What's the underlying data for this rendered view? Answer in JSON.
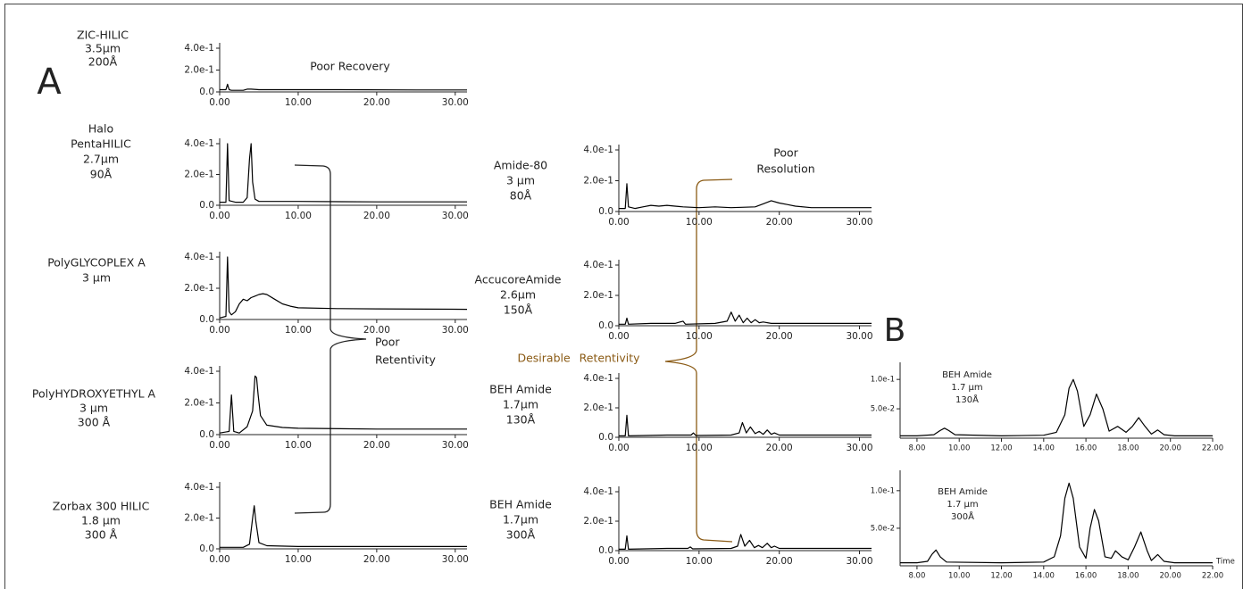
{
  "chart_data": [
    {
      "type": "line",
      "labels": [
        "ZIC-HILIC",
        "3.5µm",
        "200Å"
      ],
      "color": "#000000",
      "x": [
        0,
        0.8,
        1.0,
        1.2,
        1.5,
        3,
        3.5,
        4,
        5,
        8,
        15,
        25,
        31.5
      ],
      "values": [
        0.02,
        0.02,
        0.07,
        0.02,
        0.015,
        0.015,
        0.025,
        0.025,
        0.02,
        0.02,
        0.02,
        0.018,
        0.018
      ],
      "xlim": [
        0,
        31.5
      ],
      "ylim": [
        0,
        0.4
      ],
      "xticks": [
        {
          "value": 0,
          "label": "0.00"
        },
        {
          "value": 10,
          "label": "10.00"
        },
        {
          "value": 20,
          "label": "20.00"
        },
        {
          "value": 30,
          "label": "30.00"
        }
      ],
      "yticks": [
        {
          "value": 0,
          "label": "0.0"
        },
        {
          "value": 0.2,
          "label": "2.0e-1"
        },
        {
          "value": 0.4,
          "label": "4.0e-1"
        }
      ]
    },
    {
      "type": "line",
      "labels": [
        "Halo",
        "PentaHILIC",
        "2.7µm",
        "90Å"
      ],
      "color": "#000000",
      "x": [
        0,
        0.8,
        1.0,
        1.2,
        2,
        3,
        3.5,
        3.8,
        4.0,
        4.2,
        4.5,
        5,
        10,
        20,
        31.5
      ],
      "values": [
        0.02,
        0.02,
        0.4,
        0.03,
        0.02,
        0.02,
        0.05,
        0.3,
        0.4,
        0.15,
        0.04,
        0.025,
        0.025,
        0.022,
        0.022
      ],
      "xlim": [
        0,
        31.5
      ],
      "ylim": [
        0,
        0.4
      ],
      "xticks": [
        {
          "value": 0,
          "label": "0.00"
        },
        {
          "value": 10,
          "label": "10.00"
        },
        {
          "value": 20,
          "label": "20.00"
        },
        {
          "value": 30,
          "label": "30.00"
        }
      ],
      "yticks": [
        {
          "value": 0,
          "label": "0.0"
        },
        {
          "value": 0.2,
          "label": "2.0e-1"
        },
        {
          "value": 0.4,
          "label": "4.0e-1"
        }
      ]
    },
    {
      "type": "line",
      "labels": [
        "PolyGLYCOPLEX A",
        "3 µm"
      ],
      "color": "#000000",
      "x": [
        0,
        0.8,
        1.0,
        1.2,
        1.5,
        2,
        2.5,
        3,
        3.5,
        4,
        4.5,
        5,
        5.5,
        6,
        7,
        8,
        9,
        10,
        15,
        20,
        31.5
      ],
      "values": [
        0.01,
        0.02,
        0.4,
        0.05,
        0.03,
        0.05,
        0.1,
        0.13,
        0.12,
        0.14,
        0.15,
        0.16,
        0.165,
        0.16,
        0.13,
        0.1,
        0.085,
        0.075,
        0.07,
        0.068,
        0.065
      ],
      "xlim": [
        0,
        31.5
      ],
      "ylim": [
        0,
        0.4
      ],
      "xticks": [
        {
          "value": 0,
          "label": "0.00"
        },
        {
          "value": 10,
          "label": "10.00"
        },
        {
          "value": 20,
          "label": "20.00"
        },
        {
          "value": 30,
          "label": "30.00"
        }
      ],
      "yticks": [
        {
          "value": 0,
          "label": "0.0"
        },
        {
          "value": 0.2,
          "label": "2.0e-1"
        },
        {
          "value": 0.4,
          "label": "4.0e-1"
        }
      ]
    },
    {
      "type": "line",
      "labels": [
        "PolyHYDROXYETHYL A",
        "3 µm",
        "300 Å"
      ],
      "color": "#000000",
      "x": [
        0,
        1.2,
        1.5,
        1.8,
        2.5,
        3.5,
        4.2,
        4.5,
        4.7,
        4.9,
        5.2,
        6,
        8,
        10,
        20,
        31.5
      ],
      "values": [
        0.01,
        0.02,
        0.25,
        0.02,
        0.01,
        0.05,
        0.15,
        0.37,
        0.36,
        0.25,
        0.12,
        0.06,
        0.045,
        0.04,
        0.035,
        0.035
      ],
      "xlim": [
        0,
        31.5
      ],
      "ylim": [
        0,
        0.4
      ],
      "xticks": [
        {
          "value": 0,
          "label": "0.00"
        },
        {
          "value": 10,
          "label": "10.00"
        },
        {
          "value": 20,
          "label": "20.00"
        },
        {
          "value": 30,
          "label": "30.00"
        }
      ],
      "yticks": [
        {
          "value": 0,
          "label": "0.0"
        },
        {
          "value": 0.2,
          "label": "2.0e-1"
        },
        {
          "value": 0.4,
          "label": "4.0e-1"
        }
      ]
    },
    {
      "type": "line",
      "labels": [
        "Zorbax 300 HILIC",
        "1.8 µm",
        "300 Å"
      ],
      "color": "#000000",
      "x": [
        0,
        3,
        3.8,
        4.2,
        4.4,
        4.6,
        5,
        6,
        10,
        31.5
      ],
      "values": [
        0.01,
        0.01,
        0.03,
        0.2,
        0.28,
        0.18,
        0.04,
        0.02,
        0.015,
        0.015
      ],
      "xlim": [
        0,
        31.5
      ],
      "ylim": [
        0,
        0.4
      ],
      "xticks": [
        {
          "value": 0,
          "label": "0.00"
        },
        {
          "value": 10,
          "label": "10.00"
        },
        {
          "value": 20,
          "label": "20.00"
        },
        {
          "value": 30,
          "label": "30.00"
        }
      ],
      "yticks": [
        {
          "value": 0,
          "label": "0.0"
        },
        {
          "value": 0.2,
          "label": "2.0e-1"
        },
        {
          "value": 0.4,
          "label": "4.0e-1"
        }
      ]
    },
    {
      "type": "line",
      "labels": [
        "Amide-80",
        "3 µm",
        "80Å"
      ],
      "color": "#000000",
      "x": [
        0,
        0.8,
        1.0,
        1.2,
        2,
        3,
        4,
        5,
        6,
        7,
        8,
        10,
        12,
        14,
        17,
        18,
        19,
        20,
        21,
        22,
        24,
        31.5
      ],
      "values": [
        0.02,
        0.02,
        0.18,
        0.03,
        0.02,
        0.03,
        0.04,
        0.035,
        0.04,
        0.035,
        0.03,
        0.025,
        0.03,
        0.025,
        0.03,
        0.05,
        0.07,
        0.055,
        0.045,
        0.035,
        0.025,
        0.025
      ],
      "xlim": [
        0,
        31.5
      ],
      "ylim": [
        0,
        0.4
      ],
      "xticks": [
        {
          "value": 0,
          "label": "0.00"
        },
        {
          "value": 10,
          "label": "10.00"
        },
        {
          "value": 20,
          "label": "20.00"
        },
        {
          "value": 30,
          "label": "30.00"
        }
      ],
      "yticks": [
        {
          "value": 0,
          "label": "0.0"
        },
        {
          "value": 0.2,
          "label": "2.0e-1"
        },
        {
          "value": 0.4,
          "label": "4.0e-1"
        }
      ]
    },
    {
      "type": "line",
      "labels": [
        "AccucoreAmide",
        "2.6µm",
        "150Å"
      ],
      "color": "#000000",
      "x": [
        0,
        0.8,
        1.0,
        1.2,
        4,
        7,
        8,
        8.3,
        12,
        13.5,
        14,
        14.5,
        15,
        15.5,
        16,
        16.5,
        17,
        17.5,
        18,
        19,
        20,
        31.5
      ],
      "values": [
        0.01,
        0.01,
        0.05,
        0.01,
        0.015,
        0.015,
        0.03,
        0.01,
        0.015,
        0.03,
        0.09,
        0.03,
        0.07,
        0.02,
        0.05,
        0.02,
        0.04,
        0.02,
        0.025,
        0.015,
        0.015,
        0.015
      ],
      "xlim": [
        0,
        31.5
      ],
      "ylim": [
        0,
        0.4
      ],
      "xticks": [
        {
          "value": 0,
          "label": "0.00"
        },
        {
          "value": 10,
          "label": "10.00"
        },
        {
          "value": 20,
          "label": "20.00"
        },
        {
          "value": 30,
          "label": "30.00"
        }
      ],
      "yticks": [
        {
          "value": 0,
          "label": "0.0"
        },
        {
          "value": 0.2,
          "label": "2.0e-1"
        },
        {
          "value": 0.4,
          "label": "4.0e-1"
        }
      ]
    },
    {
      "type": "line",
      "labels": [
        "BEH Amide",
        "1.7µm",
        "130Å"
      ],
      "color": "#000000",
      "x": [
        0,
        0.8,
        1.0,
        1.2,
        6,
        9,
        9.3,
        9.6,
        14,
        15,
        15.4,
        15.9,
        16.4,
        17,
        17.5,
        18,
        18.5,
        19,
        19.4,
        20,
        31.5
      ],
      "values": [
        0.01,
        0.01,
        0.15,
        0.01,
        0.015,
        0.015,
        0.03,
        0.012,
        0.015,
        0.03,
        0.1,
        0.03,
        0.07,
        0.025,
        0.04,
        0.02,
        0.05,
        0.02,
        0.03,
        0.015,
        0.015
      ],
      "xlim": [
        0,
        31.5
      ],
      "ylim": [
        0,
        0.4
      ],
      "xticks": [
        {
          "value": 0,
          "label": "0.00"
        },
        {
          "value": 10,
          "label": "10.00"
        },
        {
          "value": 20,
          "label": "20.00"
        },
        {
          "value": 30,
          "label": "30.00"
        }
      ],
      "yticks": [
        {
          "value": 0,
          "label": "0.0"
        },
        {
          "value": 0.2,
          "label": "2.0e-1"
        },
        {
          "value": 0.4,
          "label": "4.0e-1"
        }
      ]
    },
    {
      "type": "line",
      "labels": [
        "BEH Amide",
        "1.7µm",
        "300Å"
      ],
      "color": "#000000",
      "x": [
        0,
        0.8,
        1.0,
        1.2,
        6,
        8.6,
        8.9,
        9.2,
        14,
        14.8,
        15.2,
        15.7,
        16.3,
        16.9,
        17.4,
        17.9,
        18.5,
        19,
        19.4,
        20,
        31.5
      ],
      "values": [
        0.01,
        0.01,
        0.1,
        0.01,
        0.015,
        0.015,
        0.025,
        0.012,
        0.015,
        0.03,
        0.11,
        0.03,
        0.07,
        0.02,
        0.035,
        0.02,
        0.05,
        0.02,
        0.03,
        0.015,
        0.015
      ],
      "xlim": [
        0,
        31.5
      ],
      "ylim": [
        0,
        0.4
      ],
      "xticks": [
        {
          "value": 0,
          "label": "0.00"
        },
        {
          "value": 10,
          "label": "10.00"
        },
        {
          "value": 20,
          "label": "20.00"
        },
        {
          "value": 30,
          "label": "30.00"
        }
      ],
      "yticks": [
        {
          "value": 0,
          "label": "0.0"
        },
        {
          "value": 0.2,
          "label": "2.0e-1"
        },
        {
          "value": 0.4,
          "label": "4.0e-1"
        }
      ]
    },
    {
      "type": "line",
      "labels": [
        "BEH Amide",
        "1.7 µm",
        "130Å"
      ],
      "color": "#000000",
      "x": [
        7.2,
        8,
        8.8,
        9.1,
        9.3,
        9.5,
        9.8,
        12,
        14,
        14.6,
        15,
        15.2,
        15.4,
        15.6,
        15.9,
        16.2,
        16.5,
        16.8,
        17.1,
        17.5,
        17.9,
        18.2,
        18.5,
        18.8,
        19.1,
        19.4,
        19.7,
        20.2,
        22
      ],
      "values": [
        0.004,
        0.004,
        0.006,
        0.013,
        0.017,
        0.013,
        0.006,
        0.004,
        0.005,
        0.01,
        0.04,
        0.085,
        0.1,
        0.08,
        0.02,
        0.04,
        0.075,
        0.05,
        0.012,
        0.02,
        0.01,
        0.02,
        0.035,
        0.02,
        0.007,
        0.014,
        0.006,
        0.004,
        0.004
      ],
      "xlim": [
        7.2,
        22
      ],
      "ylim": [
        0,
        0.12
      ],
      "xticks": [
        {
          "value": 8,
          "label": "8.00"
        },
        {
          "value": 10,
          "label": "10.00"
        },
        {
          "value": 12,
          "label": "12.00"
        },
        {
          "value": 14,
          "label": "14.00"
        },
        {
          "value": 16,
          "label": "16.00"
        },
        {
          "value": 18,
          "label": "18.00"
        },
        {
          "value": 20,
          "label": "20.00"
        },
        {
          "value": 22,
          "label": "22.00"
        }
      ],
      "yticks": [
        {
          "value": 0.05,
          "label": "5.0e-2"
        },
        {
          "value": 0.1,
          "label": "1.0e-1"
        }
      ]
    },
    {
      "type": "line",
      "labels": [
        "BEH Amide",
        "1.7 µm",
        "300Å"
      ],
      "color": "#000000",
      "xlabel": "Time",
      "x": [
        7.2,
        8,
        8.5,
        8.7,
        8.9,
        9.1,
        9.4,
        12,
        14,
        14.5,
        14.8,
        15,
        15.2,
        15.4,
        15.7,
        16,
        16.2,
        16.4,
        16.6,
        16.9,
        17.2,
        17.4,
        17.7,
        18,
        18.3,
        18.6,
        18.9,
        19.1,
        19.4,
        19.7,
        20.2,
        22
      ],
      "values": [
        0.004,
        0.004,
        0.006,
        0.015,
        0.021,
        0.012,
        0.005,
        0.004,
        0.005,
        0.012,
        0.04,
        0.09,
        0.11,
        0.09,
        0.025,
        0.01,
        0.05,
        0.075,
        0.06,
        0.012,
        0.01,
        0.02,
        0.012,
        0.008,
        0.025,
        0.045,
        0.02,
        0.007,
        0.015,
        0.006,
        0.004,
        0.004
      ],
      "xlim": [
        7.2,
        22
      ],
      "ylim": [
        0,
        0.12
      ],
      "xticks": [
        {
          "value": 8,
          "label": "8.00"
        },
        {
          "value": 10,
          "label": "10.00"
        },
        {
          "value": 12,
          "label": "12.00"
        },
        {
          "value": 14,
          "label": "14.00"
        },
        {
          "value": 16,
          "label": "16.00"
        },
        {
          "value": 18,
          "label": "18.00"
        },
        {
          "value": 20,
          "label": "20.00"
        },
        {
          "value": 22,
          "label": "22.00"
        }
      ],
      "yticks": [
        {
          "value": 0.05,
          "label": "5.0e-2"
        },
        {
          "value": 0.1,
          "label": "1.0e-1"
        }
      ]
    }
  ],
  "annotations": {
    "panel_a": "A",
    "panel_b": "B",
    "poor_recovery": "Poor Recovery",
    "poor_resolution": [
      "Poor",
      "Resolution"
    ],
    "poor_retentivity": [
      "Poor",
      "Retentivity"
    ],
    "desirable_retentivity": "Desirable Retentivity"
  }
}
